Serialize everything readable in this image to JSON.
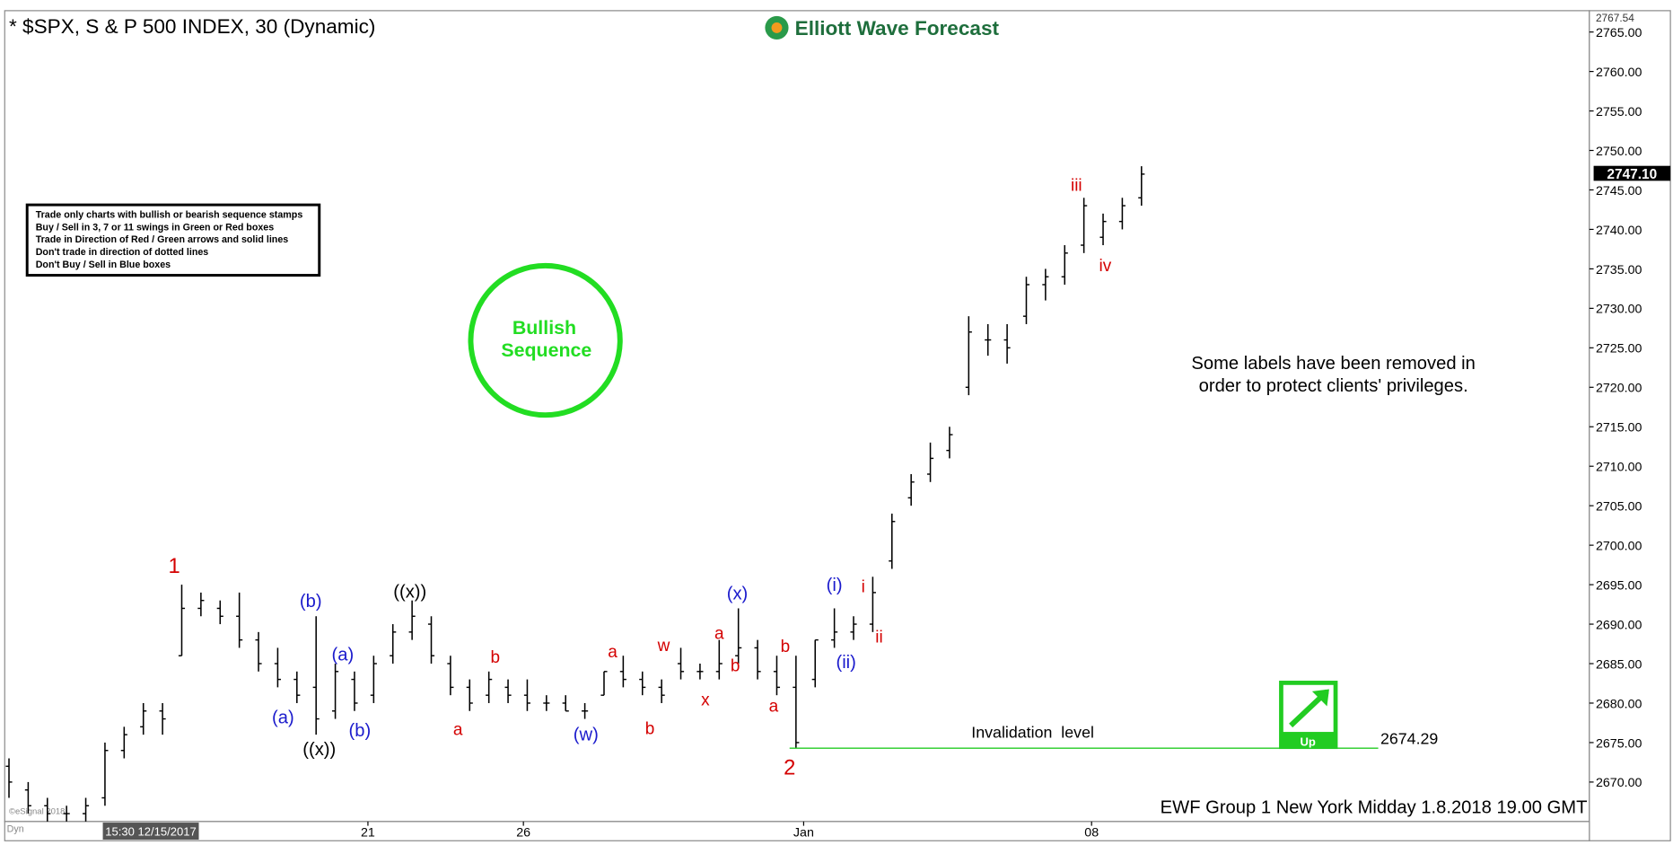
{
  "chart_data": {
    "type": "ohlc",
    "title": "* $SPX, S & P 500 INDEX, 30 (Dynamic)",
    "logo": "Elliott Wave Forecast",
    "footer": "EWF Group 1 New York Midday  1.8.2018 19.00 GMT",
    "start_label": "15:30 12/15/2017",
    "copyright": "©eSignal 2018",
    "dyn": "Dyn",
    "rules": [
      "Trade only charts with bullish or bearish sequence stamps",
      "Buy / Sell in 3, 7 or 11 swings in Green or Red boxes",
      "Trade in Direction of Red / Green arrows and solid lines",
      "Don't trade in direction of dotted lines",
      "Don't Buy / Sell in Blue boxes"
    ],
    "stamp": [
      "Bullish",
      "Sequence"
    ],
    "note": [
      "Some labels have been removed in",
      "order to protect clients' privileges."
    ],
    "invalidation": {
      "label": "Invalidation  level",
      "value": 2674.29
    },
    "arrow_label": "Up",
    "last_price": {
      "value": 2747.1,
      "label": "2747.10"
    },
    "color": "#000000",
    "ylim": [
      2665,
      2767.54
    ],
    "yticks": [
      {
        "value": 2670,
        "label": "2670.00"
      },
      {
        "value": 2675,
        "label": "2675.00"
      },
      {
        "value": 2680,
        "label": "2680.00"
      },
      {
        "value": 2685,
        "label": "2685.00"
      },
      {
        "value": 2690,
        "label": "2690.00"
      },
      {
        "value": 2695,
        "label": "2695.00"
      },
      {
        "value": 2700,
        "label": "2700.00"
      },
      {
        "value": 2705,
        "label": "2705.00"
      },
      {
        "value": 2710,
        "label": "2710.00"
      },
      {
        "value": 2715,
        "label": "2715.00"
      },
      {
        "value": 2720,
        "label": "2720.00"
      },
      {
        "value": 2725,
        "label": "2725.00"
      },
      {
        "value": 2730,
        "label": "2730.00"
      },
      {
        "value": 2735,
        "label": "2735.00"
      },
      {
        "value": 2740,
        "label": "2740.00"
      },
      {
        "value": 2745,
        "label": "2745.00"
      },
      {
        "value": 2750,
        "label": "2750.00"
      },
      {
        "value": 2755,
        "label": "2755.00"
      },
      {
        "value": 2760,
        "label": "2760.00"
      },
      {
        "value": 2765,
        "label": "2765.00"
      }
    ],
    "xticks": [
      {
        "value": 18.7,
        "label": "21"
      },
      {
        "value": 26.8,
        "label": "26"
      },
      {
        "value": 41.4,
        "label": "Jan"
      },
      {
        "value": 56.4,
        "label": "08"
      }
    ],
    "open": [
      2672,
      2669,
      2667,
      2666,
      2666,
      2668,
      2674,
      2677,
      2679,
      2686,
      2692,
      2692,
      2691,
      2688,
      2685,
      2683,
      2682,
      2679,
      2683,
      2681,
      2686,
      2689,
      2690,
      2685,
      2682,
      2681,
      2682,
      2681,
      2680,
      2680,
      2679,
      2681,
      2684,
      2683,
      2682,
      2685,
      2684,
      2684,
      2686,
      2687,
      2684,
      2682,
      2683,
      2688,
      2689,
      2690,
      2698,
      2706,
      2709,
      2712,
      2720,
      2726,
      2726,
      2729,
      2733,
      2734,
      2738,
      2739,
      2741,
      2744
    ],
    "high": [
      2673,
      2670,
      2668,
      2667,
      2668,
      2675,
      2677,
      2680,
      2680,
      2695,
      2694,
      2693,
      2694,
      2689,
      2687,
      2684,
      2691,
      2685,
      2684,
      2686,
      2690,
      2693,
      2691,
      2686,
      2683,
      2684,
      2683,
      2683,
      2681,
      2681,
      2680,
      2684,
      2686,
      2684,
      2683,
      2687,
      2685,
      2688,
      2692,
      2688,
      2686,
      2686,
      2688,
      2692,
      2691,
      2696,
      2704,
      2709,
      2713,
      2715,
      2729,
      2728,
      2728,
      2734,
      2735,
      2738,
      2744,
      2742,
      2744,
      2748
    ],
    "low": [
      2668,
      2666,
      2665,
      2665,
      2665,
      2667,
      2673,
      2676,
      2676,
      2686,
      2691,
      2690,
      2687,
      2684,
      2682,
      2680,
      2676,
      2678,
      2679,
      2680,
      2685,
      2688,
      2685,
      2681,
      2679,
      2680,
      2680,
      2679,
      2679,
      2679,
      2678,
      2681,
      2682,
      2681,
      2680,
      2683,
      2683,
      2683,
      2685,
      2683,
      2681,
      2674.3,
      2682,
      2687,
      2688,
      2689,
      2697,
      2705,
      2708,
      2711,
      2719,
      2724,
      2723,
      2728,
      2731,
      2733,
      2737,
      2738,
      2740,
      2743
    ],
    "close": [
      2670,
      2667,
      2666,
      2666,
      2667,
      2674,
      2676,
      2679,
      2678,
      2692,
      2693,
      2691,
      2688,
      2685,
      2683,
      2681,
      2678,
      2684,
      2680,
      2685,
      2689,
      2691,
      2686,
      2682,
      2680,
      2683,
      2681,
      2680,
      2680,
      2679,
      2679,
      2684,
      2683,
      2682,
      2681,
      2684,
      2684,
      2685,
      2687,
      2684,
      2682,
      2675,
      2688,
      2689,
      2690,
      2694,
      2703,
      2708,
      2711,
      2714,
      2727,
      2726,
      2725,
      2733,
      2734,
      2737,
      2743,
      2741,
      2743,
      2747
    ],
    "wave_colors": {
      "red": "#d40000",
      "blue": "#1a1acc",
      "black": "#000000",
      "green": "#22dd22"
    },
    "wave_labels": [
      {
        "text": "1",
        "color": "red"
      },
      {
        "text": "(b)",
        "color": "blue"
      },
      {
        "text": "(a)",
        "color": "blue"
      },
      {
        "text": "((x))",
        "color": "black"
      },
      {
        "text": "(a)",
        "color": "blue"
      },
      {
        "text": "(b)",
        "color": "blue"
      },
      {
        "text": "((x))",
        "color": "black"
      },
      {
        "text": "a",
        "color": "red"
      },
      {
        "text": "b",
        "color": "red"
      },
      {
        "text": "(w)",
        "color": "blue"
      },
      {
        "text": "a",
        "color": "red"
      },
      {
        "text": "b",
        "color": "red"
      },
      {
        "text": "w",
        "color": "red"
      },
      {
        "text": "x",
        "color": "red"
      },
      {
        "text": "a",
        "color": "red"
      },
      {
        "text": "b",
        "color": "red"
      },
      {
        "text": "(x)",
        "color": "blue"
      },
      {
        "text": "a",
        "color": "red"
      },
      {
        "text": "b",
        "color": "red"
      },
      {
        "text": "2",
        "color": "red"
      },
      {
        "text": "(i)",
        "color": "blue"
      },
      {
        "text": "(ii)",
        "color": "blue"
      },
      {
        "text": "i",
        "color": "red"
      },
      {
        "text": "ii",
        "color": "red"
      },
      {
        "text": "iii",
        "color": "red"
      },
      {
        "text": "iv",
        "color": "red"
      }
    ]
  }
}
